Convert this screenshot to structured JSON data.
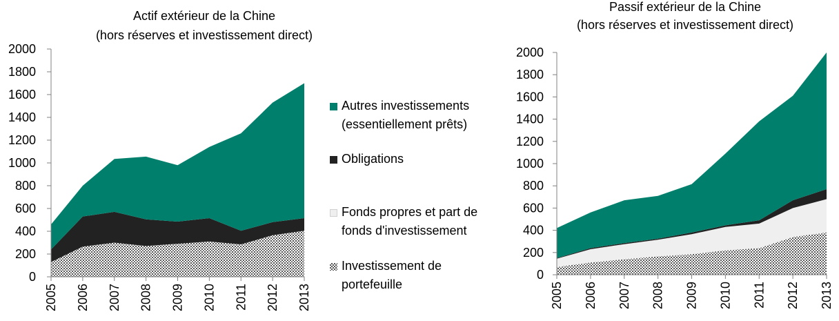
{
  "colors": {
    "autres": "#00806C",
    "obligations": "#222222",
    "fonds": "#EFEFEF",
    "portefeuille": "#666666"
  },
  "legend": [
    {
      "key": "autres",
      "label": "Autres investissements\n(essentiellement prêts)",
      "pattern": "solid"
    },
    {
      "key": "obligations",
      "label": "Obligations",
      "pattern": "solid"
    },
    {
      "key": "fonds",
      "label": "Fonds propres et part de\nfonds d'investissement",
      "pattern": "solid"
    },
    {
      "key": "portefeuille",
      "label": "Investissement de\nportefeuille",
      "pattern": "dots"
    }
  ],
  "chart_data": [
    {
      "type": "area",
      "stacked": true,
      "title": "Actif extérieur de la Chine\n(hors réserves et investissement direct)",
      "xlabel": "",
      "ylabel": "",
      "ylim": [
        0,
        2000
      ],
      "yticks": [
        "0",
        "200",
        "400",
        "600",
        "800",
        "1000",
        "1200",
        "1400",
        "1600",
        "1800",
        "2000"
      ],
      "x": [
        "2005",
        "2006",
        "2007",
        "2008",
        "2009",
        "2010",
        "2011",
        "2012",
        "2013"
      ],
      "series": [
        {
          "name": "Investissement de portefeuille",
          "key": "portefeuille",
          "values": [
            130,
            265,
            300,
            270,
            290,
            310,
            285,
            365,
            405
          ]
        },
        {
          "name": "Fonds propres et part de fonds d'investissement",
          "key": "fonds",
          "values": [
            0,
            0,
            0,
            0,
            0,
            0,
            0,
            0,
            0
          ]
        },
        {
          "name": "Obligations",
          "key": "obligations",
          "values": [
            110,
            265,
            270,
            235,
            195,
            205,
            120,
            115,
            110
          ]
        },
        {
          "name": "Autres investissements (essentiellement prêts)",
          "key": "autres",
          "values": [
            220,
            270,
            465,
            550,
            495,
            625,
            855,
            1050,
            1185
          ]
        }
      ]
    },
    {
      "type": "area",
      "stacked": true,
      "title": "Passif extérieur de la Chine\n(hors réserves et investissement direct)",
      "xlabel": "",
      "ylabel": "",
      "ylim": [
        0,
        2000
      ],
      "yticks": [
        "0",
        "200",
        "400",
        "600",
        "800",
        "1000",
        "1200",
        "1400",
        "1600",
        "1800",
        "2000"
      ],
      "x": [
        "2005",
        "2006",
        "2007",
        "2008",
        "2009",
        "2010",
        "2011",
        "2012",
        "2013"
      ],
      "series": [
        {
          "name": "Investissement de portefeuille",
          "key": "portefeuille",
          "values": [
            70,
            110,
            140,
            165,
            185,
            220,
            240,
            340,
            380
          ]
        },
        {
          "name": "Fonds propres et part de fonds d'investissement",
          "key": "fonds",
          "values": [
            75,
            120,
            135,
            150,
            180,
            210,
            220,
            260,
            300
          ]
        },
        {
          "name": "Obligations",
          "key": "obligations",
          "values": [
            5,
            10,
            10,
            10,
            15,
            15,
            30,
            70,
            90
          ]
        },
        {
          "name": "Autres investissements (essentiellement prêts)",
          "key": "autres",
          "values": [
            270,
            320,
            385,
            385,
            435,
            645,
            890,
            940,
            1230
          ]
        }
      ]
    }
  ]
}
